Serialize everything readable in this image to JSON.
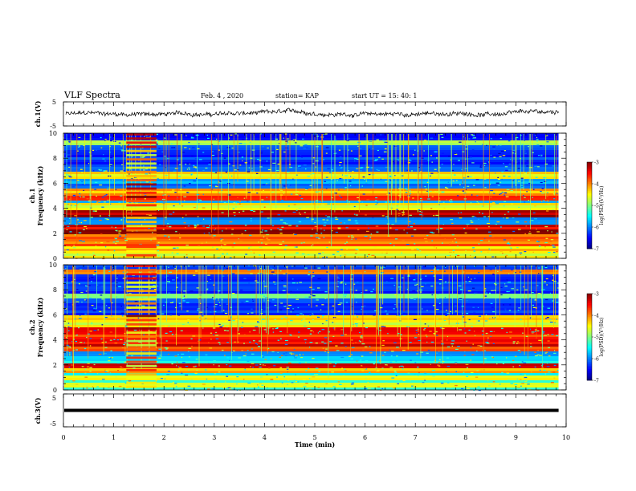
{
  "header": {
    "title": "VLF Spectra",
    "date": "Feb. 4 , 2020",
    "station": "station= KAP",
    "start": "start  UT =   15: 40: 1"
  },
  "chart_data": [
    {
      "id": "ch1_waveform",
      "type": "line",
      "ylabel": "ch.1(V)",
      "ylim": [
        -5,
        5
      ],
      "yticks": [
        "5",
        "-5"
      ],
      "xlim": [
        0,
        10
      ],
      "shown_until_min": 9.85,
      "series_color": "#000000",
      "grid": false
    },
    {
      "id": "ch1_spectrogram",
      "type": "heatmap",
      "ylabel": "ch.1\nFrequency (kHz)",
      "ylim": [
        0,
        10
      ],
      "yticks": [
        "0",
        "2",
        "4",
        "6",
        "8",
        "10"
      ],
      "xlim": [
        0,
        10
      ],
      "shown_until_min": 9.85,
      "colorbar": {
        "label": "log(PSD)(V²/Hz)",
        "range": [
          -7,
          -3
        ],
        "ticks": [
          "-3",
          "-4",
          "-5",
          "-6",
          "-7"
        ]
      },
      "bands_khz": [
        {
          "f": 0.3,
          "v": -4.8
        },
        {
          "f": 0.9,
          "v": -4.6
        },
        {
          "f": 1.3,
          "v": -4.2
        },
        {
          "f": 1.8,
          "v": -4.1
        },
        {
          "f": 2.1,
          "v": -3.2
        },
        {
          "f": 2.4,
          "v": -3.6
        },
        {
          "f": 3.1,
          "v": -6.8
        },
        {
          "f": 3.6,
          "v": -3.4
        },
        {
          "f": 4.1,
          "v": -4.8
        },
        {
          "f": 4.8,
          "v": -3.8
        },
        {
          "f": 5.3,
          "v": -4.4
        },
        {
          "f": 6.2,
          "v": -6.0
        },
        {
          "f": 6.6,
          "v": -4.7
        },
        {
          "f": 7.0,
          "v": -6.5
        },
        {
          "f": 9.2,
          "v": -5.0
        }
      ],
      "burst_min": [
        1.25,
        1.85
      ]
    },
    {
      "id": "ch2_spectrogram",
      "type": "heatmap",
      "ylabel": "ch.2\nFrequency (kHz)",
      "ylim": [
        0,
        10
      ],
      "yticks": [
        "0",
        "2",
        "4",
        "6",
        "8",
        "10"
      ],
      "xlim": [
        0,
        10
      ],
      "shown_until_min": 9.85,
      "colorbar": {
        "label": "log(PSD)(V²/Hz)",
        "range": [
          -7,
          -3
        ],
        "ticks": [
          "-3",
          "-4",
          "-5",
          "-6",
          "-7"
        ]
      },
      "bands_khz": [
        {
          "f": 0.4,
          "v": -4.8
        },
        {
          "f": 1.0,
          "v": -4.7
        },
        {
          "f": 1.6,
          "v": -4.4
        },
        {
          "f": 1.9,
          "v": -3.5
        },
        {
          "f": 2.6,
          "v": -6.8
        },
        {
          "f": 3.3,
          "v": -4.0
        },
        {
          "f": 3.8,
          "v": -3.7
        },
        {
          "f": 4.3,
          "v": -3.9
        },
        {
          "f": 4.8,
          "v": -3.6
        },
        {
          "f": 5.3,
          "v": -4.8
        },
        {
          "f": 5.8,
          "v": -4.5
        },
        {
          "f": 7.5,
          "v": -5.2
        },
        {
          "f": 9.4,
          "v": -4.2
        }
      ],
      "burst_min": [
        1.25,
        1.85
      ]
    },
    {
      "id": "ch3_waveform",
      "type": "line",
      "ylabel": "ch.3(V)",
      "ylim": [
        -5,
        5
      ],
      "yticks": [
        "5",
        "-5"
      ],
      "xlim": [
        0,
        10
      ],
      "shown_until_min": 9.85,
      "constant_value": 0,
      "series_color": "#000000",
      "grid": false
    }
  ],
  "xaxis": {
    "label": "Time (min)",
    "ticks": [
      "0",
      "1",
      "2",
      "3",
      "4",
      "5",
      "6",
      "7",
      "8",
      "9",
      "10"
    ],
    "range": [
      0,
      10
    ]
  },
  "colormap": [
    "#000080",
    "#0000ff",
    "#0080ff",
    "#00ffff",
    "#80ff80",
    "#ffff00",
    "#ff8000",
    "#ff0000",
    "#800000"
  ]
}
